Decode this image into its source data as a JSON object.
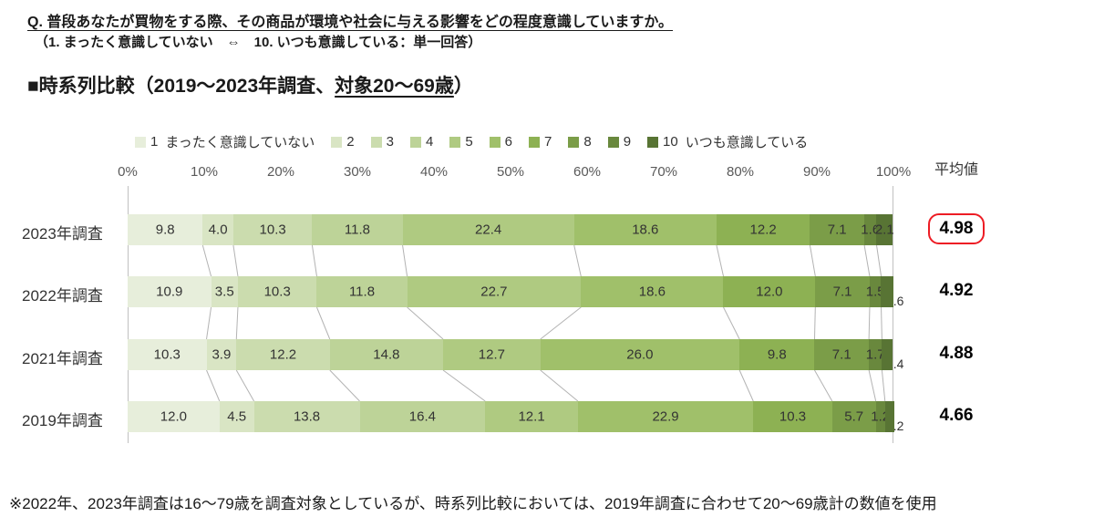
{
  "header": {
    "question": "Q. 普段あなたが買物をする際、その商品が環境や社会に与える影響をどの程度意識していますか。",
    "scale_note": "（1. まったく意識していない　⇔　10. いつも意識している：単一回答）",
    "section_title_prefix": "■時系列比較（2019〜2023年調査、",
    "section_title_underline": "対象20〜69歳",
    "section_title_suffix": "）"
  },
  "colors": {
    "highlight_red": "#ed1c24",
    "connector_gray": "#b3b3b3",
    "axis_gray": "#c0c0c0",
    "label_text": "#333333"
  },
  "chart_data": {
    "type": "bar",
    "stacked": true,
    "orientation": "horizontal",
    "title": "時系列比較（2019〜2023年調査、対象20〜69歳）",
    "average_header": "平均値",
    "x_ticks": [
      "0%",
      "10%",
      "20%",
      "30%",
      "40%",
      "50%",
      "60%",
      "70%",
      "80%",
      "90%",
      "100%"
    ],
    "xlim": [
      0,
      100
    ],
    "legend_position": "top",
    "segments": [
      {
        "key": "1",
        "label": "まったく意識していない",
        "color": "#e7eedb"
      },
      {
        "key": "2",
        "label": "",
        "color": "#d9e5c4"
      },
      {
        "key": "3",
        "label": "",
        "color": "#cbdcae"
      },
      {
        "key": "4",
        "label": "",
        "color": "#bdd398"
      },
      {
        "key": "5",
        "label": "",
        "color": "#afca81"
      },
      {
        "key": "6",
        "label": "",
        "color": "#a0c06a"
      },
      {
        "key": "7",
        "label": "",
        "color": "#8db153"
      },
      {
        "key": "8",
        "label": "",
        "color": "#7b9d48"
      },
      {
        "key": "9",
        "label": "",
        "color": "#69883d"
      },
      {
        "key": "10",
        "label": "いつも意識している",
        "color": "#587434"
      }
    ],
    "rows": [
      {
        "category": "2023年調査",
        "values": [
          9.8,
          4.0,
          10.3,
          11.8,
          22.4,
          18.6,
          12.2,
          7.1,
          1.6,
          2.1
        ],
        "average": "4.98",
        "average_highlighted": true
      },
      {
        "category": "2022年調査",
        "values": [
          10.9,
          3.5,
          10.3,
          11.8,
          22.7,
          18.6,
          12.0,
          7.1,
          1.5,
          1.6
        ],
        "average": "4.92",
        "average_highlighted": false
      },
      {
        "category": "2021年調査",
        "values": [
          10.3,
          3.9,
          12.2,
          14.8,
          12.7,
          26.0,
          9.8,
          7.1,
          1.7,
          1.4
        ],
        "average": "4.88",
        "average_highlighted": false
      },
      {
        "category": "2019年調査",
        "values": [
          12.0,
          4.5,
          13.8,
          16.4,
          12.1,
          22.9,
          10.3,
          5.7,
          1.2,
          1.2
        ],
        "average": "4.66",
        "average_highlighted": false
      }
    ]
  },
  "footnote": "※2022年、2023年調査は16〜79歳を調査対象としているが、時系列比較においては、2019年調査に合わせて20〜69歳計の数値を使用"
}
